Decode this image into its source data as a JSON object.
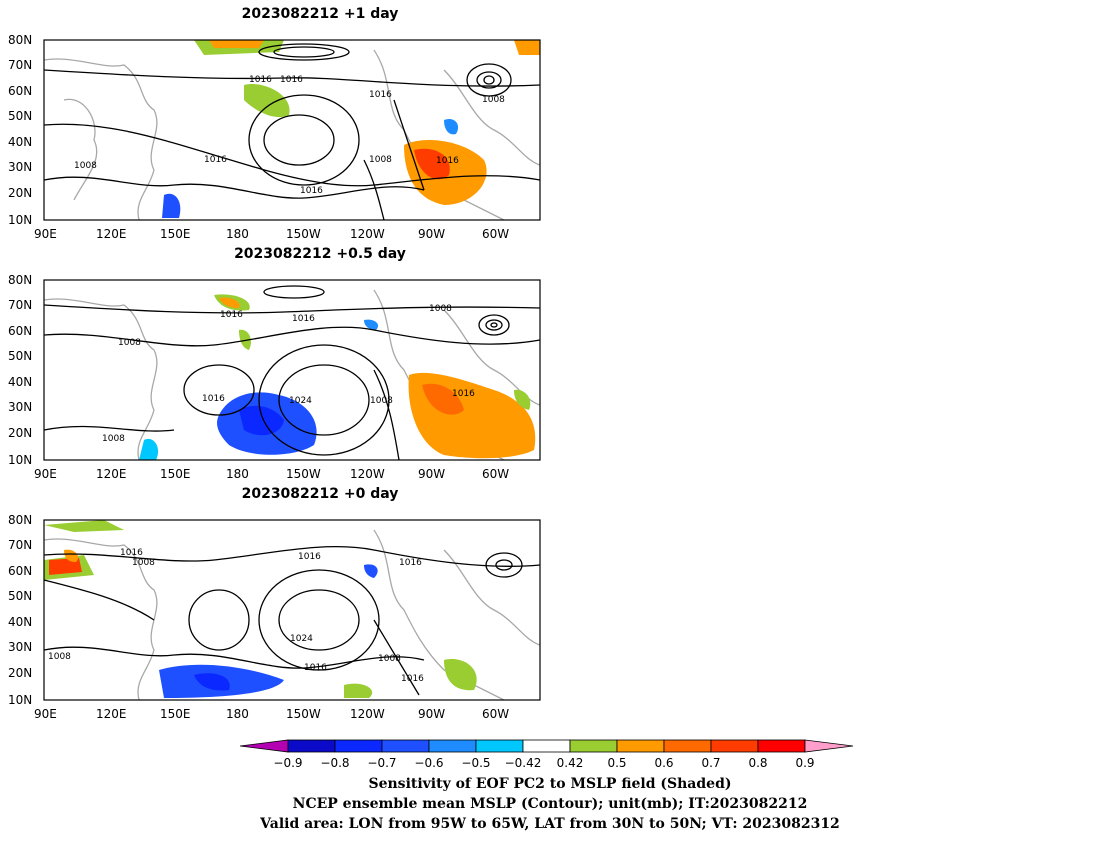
{
  "panels": [
    {
      "title": "2023082212  +1 day",
      "contour_labels": [
        "1016",
        "1016",
        "1008",
        "1016",
        "1008",
        "1016",
        "1008",
        "1016",
        "1016"
      ]
    },
    {
      "title": "2023082212  +0.5 day",
      "contour_labels": [
        "1016",
        "1016",
        "1008",
        "1008",
        "1016",
        "1024",
        "1008",
        "1016",
        "1008"
      ]
    },
    {
      "title": "2023082212  +0  day",
      "contour_labels": [
        "1016",
        "1008",
        "1016",
        "1016",
        "1024",
        "1016",
        "1008",
        "1016",
        "1008"
      ]
    }
  ],
  "axes": {
    "lat_labels": [
      "80N",
      "70N",
      "60N",
      "50N",
      "40N",
      "30N",
      "20N",
      "10N"
    ],
    "lon_labels": [
      "90E",
      "120E",
      "150E",
      "180",
      "150W",
      "120W",
      "90W",
      "60W"
    ]
  },
  "colorbar": {
    "labels": [
      "−0.9",
      "−0.8",
      "−0.7",
      "−0.6",
      "−0.5",
      "−0.42",
      "0.42",
      "0.5",
      "0.6",
      "0.7",
      "0.8",
      "0.9"
    ],
    "colors": [
      "#b300b3",
      "#0a0ac8",
      "#0a28ff",
      "#1e50ff",
      "#1e8cff",
      "#00c8ff",
      "#ffffff",
      "#9acd32",
      "#ff9a00",
      "#ff6a00",
      "#ff3c00",
      "#ff0000",
      "#ff9ecb"
    ]
  },
  "caption": {
    "line1": "Sensitivity of EOF PC2 to MSLP field (Shaded)",
    "line2": "NCEP ensemble mean MSLP (Contour); unit(mb); IT:2023082212",
    "line3": "Valid area: LON from 95W to 65W, LAT from 30N to 50N; VT: 2023082312"
  }
}
